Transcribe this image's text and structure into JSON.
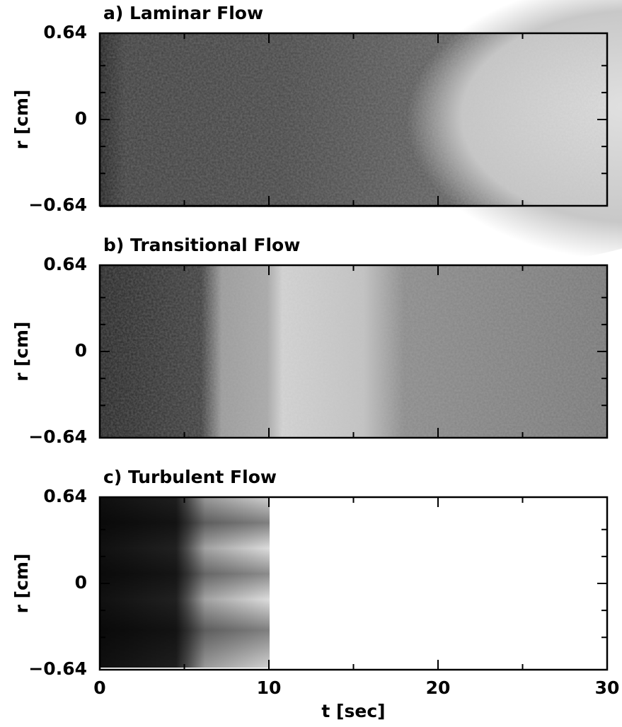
{
  "chart_data": [
    {
      "type": "image",
      "title": "a) Laminar Flow",
      "ylabel": "r [cm]",
      "xlim": [
        0,
        30
      ],
      "xticks": [
        0,
        10,
        20,
        30
      ],
      "xminor": [
        5,
        15,
        25
      ],
      "ylim": [
        -0.64,
        0.64
      ],
      "yticks": [
        {
          "value": -0.64,
          "label": "−0.64"
        },
        0,
        0.64
      ],
      "yminor": [
        -0.4,
        -0.2,
        0.2,
        0.4
      ]
    },
    {
      "type": "image",
      "title": "b) Transitional Flow",
      "ylabel": "r [cm]",
      "xlim": [
        0,
        30
      ],
      "xticks": [
        0,
        10,
        20,
        30
      ],
      "xminor": [
        5,
        15,
        25
      ],
      "ylim": [
        -0.64,
        0.64
      ],
      "yticks": [
        {
          "value": -0.64,
          "label": "−0.64"
        },
        0,
        0.64
      ],
      "yminor": [
        -0.4,
        -0.2,
        0.2,
        0.4
      ]
    },
    {
      "type": "image",
      "title": "c) Turbulent Flow",
      "ylabel": "r [cm]",
      "xlabel": "t [sec]",
      "xlim": [
        0,
        30
      ],
      "xticks": [
        0,
        10,
        20,
        30
      ],
      "xminor": [
        5,
        15,
        25
      ],
      "ylim": [
        -0.64,
        0.64
      ],
      "yticks": [
        {
          "value": -0.64,
          "label": "−0.64"
        },
        0,
        0.64
      ],
      "yminor": [
        -0.4,
        -0.2,
        0.2,
        0.4
      ]
    }
  ]
}
